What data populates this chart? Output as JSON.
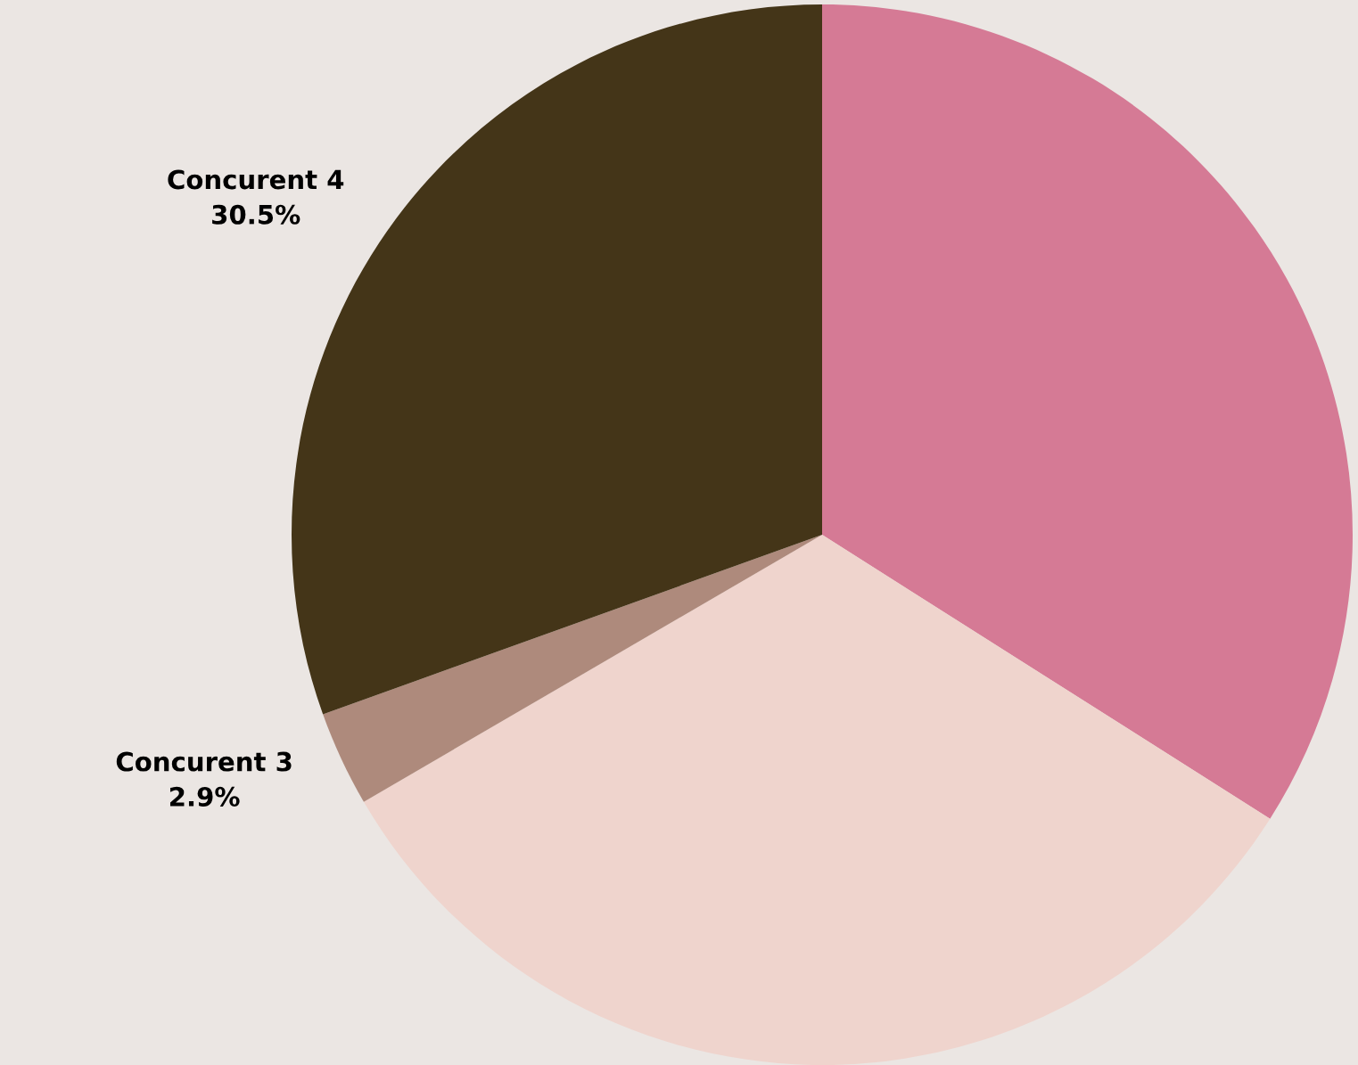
{
  "chart_data": {
    "type": "pie",
    "categories": [
      null,
      null,
      "Concurent 3",
      "Concurent 4"
    ],
    "values": [
      34.0,
      32.6,
      2.9,
      30.5
    ],
    "colors": [
      "#d57a95",
      "#efd4cd",
      "#ae8a7c",
      "#443518"
    ],
    "value_labels": [
      null,
      null,
      "2.9%",
      "30.5%"
    ],
    "legend": false
  }
}
